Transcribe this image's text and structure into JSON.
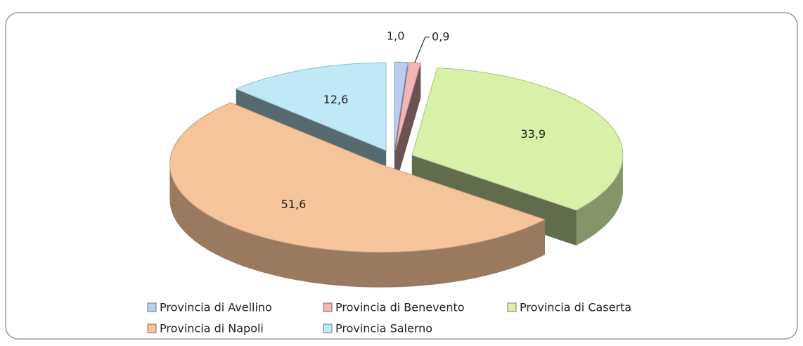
{
  "chart_data": {
    "type": "pie",
    "categories": [
      "Provincia di Avellino",
      "Provincia di Benevento",
      "Provincia di Caserta",
      "Provincia di Napoli",
      "Provincia Salerno"
    ],
    "values": [
      1.0,
      0.9,
      33.9,
      51.6,
      12.6
    ],
    "value_labels": [
      "1,0",
      "0,9",
      "33,9",
      "51,6",
      "12,6"
    ],
    "colors": [
      "#b9cdf0",
      "#f2b6b6",
      "#d8f0a8",
      "#f6c49a",
      "#bfe9f7"
    ],
    "legend": "bottom"
  }
}
